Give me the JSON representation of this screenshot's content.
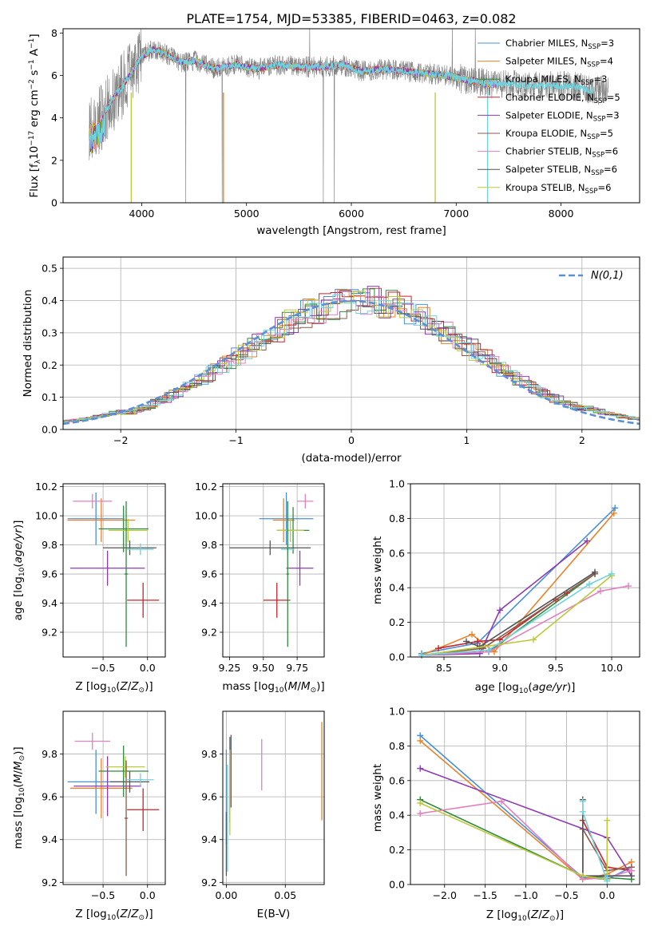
{
  "figure": {
    "title": "PLATE=1754, MJD=53385, FIBERID=0463, z=0.082"
  },
  "colors": {
    "chabrier_miles": "#4a90d9",
    "salpeter_miles": "#e8832a",
    "kroupa_miles": "#2e8b3e",
    "chabrier_elodie": "#c8242a",
    "salpeter_elodie": "#8e3bb3",
    "kroupa_elodie": "#8b5a4a",
    "chabrier_stelib": "#e37fbf",
    "salpeter_stelib": "#555555",
    "kroupa_stelib": "#bcc93a",
    "extra": "#6fd3de",
    "data": "#808080",
    "normal_curve": "#5b8fd8",
    "grid": "#b0b0b0"
  },
  "chart_data": [
    {
      "id": "spectrum",
      "type": "line",
      "xlabel": "wavelength [Angstrom, rest frame]",
      "ylabel": "Flux [f_λ 10^-17 erg cm^-2 s^-1 A^-1]",
      "xlim": [
        3250,
        8750
      ],
      "ylim": [
        0,
        8.2
      ],
      "xticks": [
        4000,
        5000,
        6000,
        7000,
        8000
      ],
      "yticks": [
        0,
        2,
        4,
        6,
        8
      ],
      "grid": false,
      "legend_position": "right",
      "legend": [
        {
          "label": "Chabrier MILES, N",
          "sub": "SSP",
          "tail": "=3",
          "color": "chabrier_miles"
        },
        {
          "label": "Salpeter MILES, N",
          "sub": "SSP",
          "tail": "=4",
          "color": "salpeter_miles"
        },
        {
          "label": "Kroupa MILES, N",
          "sub": "SSP",
          "tail": "=3",
          "color": "kroupa_miles"
        },
        {
          "label": "Chabrier ELODIE, N",
          "sub": "SSP",
          "tail": "=5",
          "color": "chabrier_elodie"
        },
        {
          "label": "Salpeter ELODIE, N",
          "sub": "SSP",
          "tail": "=3",
          "color": "salpeter_elodie"
        },
        {
          "label": "Kroupa ELODIE, N",
          "sub": "SSP",
          "tail": "=5",
          "color": "kroupa_elodie"
        },
        {
          "label": "Chabrier STELIB, N",
          "sub": "SSP",
          "tail": "=6",
          "color": "chabrier_stelib"
        },
        {
          "label": "Salpeter STELIB, N",
          "sub": "SSP",
          "tail": "=6",
          "color": "salpeter_stelib"
        },
        {
          "label": "Kroupa STELIB, N",
          "sub": "SSP",
          "tail": "=6",
          "color": "kroupa_stelib"
        }
      ],
      "continuum": {
        "x": [
          3500,
          3600,
          3700,
          3800,
          3900,
          4000,
          4100,
          4200,
          4300,
          4400,
          4500,
          4700,
          4900,
          5100,
          5300,
          5500,
          5700,
          5900,
          6100,
          6300,
          6500,
          6700,
          6900,
          7100,
          7300,
          7500,
          7700,
          7900,
          8100,
          8300,
          8450
        ],
        "y": [
          3.6,
          3.9,
          4.7,
          5.4,
          6.1,
          6.9,
          7.2,
          7.1,
          6.8,
          6.6,
          6.7,
          6.3,
          6.5,
          6.3,
          6.5,
          6.4,
          6.4,
          6.5,
          6.2,
          6.3,
          6.2,
          6.1,
          6.0,
          5.8,
          5.6,
          5.6,
          5.5,
          5.5,
          5.5,
          5.3,
          5.3
        ]
      },
      "model_range": [
        3500,
        7400
      ],
      "data_range": [
        3500,
        8450
      ]
    },
    {
      "id": "residuals",
      "type": "histogram",
      "xlabel": "(data-model)/error",
      "ylabel": "Normed distribution",
      "xlim": [
        -2.5,
        2.5
      ],
      "ylim": [
        0,
        0.535
      ],
      "xticks": [
        -2,
        -1,
        0,
        1,
        2
      ],
      "yticks": [
        0,
        0.1,
        0.2,
        0.3,
        0.4,
        0.5
      ],
      "grid": true,
      "legend_position": "top-right",
      "legend_label": "N(0,1)",
      "bin_width": 0.1
    },
    {
      "id": "age_vs_Z",
      "type": "scatter",
      "xlabel": "Z [log10(Z/Z_sun)]",
      "ylabel": "age [log10(age/yr)]",
      "xlim": [
        -0.95,
        0.2
      ],
      "ylim": [
        9.03,
        10.22
      ],
      "xticks": [
        -0.5,
        0.0
      ],
      "yticks": [
        9.2,
        9.4,
        9.6,
        9.8,
        10.0,
        10.2
      ],
      "grid": true,
      "points": [
        {
          "x": -0.58,
          "y": 9.98,
          "xerr": 0.32,
          "yerr": 0.18,
          "color": "chabrier_miles"
        },
        {
          "x": -0.52,
          "y": 9.97,
          "xerr": 0.38,
          "yerr": 0.15,
          "color": "salpeter_miles"
        },
        {
          "x": -0.27,
          "y": 9.91,
          "xerr": 0.28,
          "yerr": 0.16,
          "color": "kroupa_miles"
        },
        {
          "x": -0.05,
          "y": 9.42,
          "xerr": 0.18,
          "yerr": 0.12,
          "color": "chabrier_elodie"
        },
        {
          "x": -0.45,
          "y": 9.64,
          "xerr": 0.42,
          "yerr": 0.12,
          "color": "salpeter_elodie"
        },
        {
          "x": -0.2,
          "y": 9.78,
          "xerr": 0.3,
          "yerr": 0.05,
          "color": "salpeter_stelib"
        },
        {
          "x": -0.62,
          "y": 10.1,
          "xerr": 0.22,
          "yerr": 0.05,
          "color": "chabrier_stelib"
        },
        {
          "x": -0.22,
          "y": 9.9,
          "xerr": 0.22,
          "yerr": 0.08,
          "color": "kroupa_stelib"
        },
        {
          "x": -0.08,
          "y": 9.77,
          "xerr": 0.15,
          "yerr": 0.04,
          "color": "extra"
        },
        {
          "x": -0.24,
          "y": 9.6,
          "xerr": 0.02,
          "yerr": 0.5,
          "color": "kroupa_miles"
        }
      ]
    },
    {
      "id": "age_vs_mass",
      "type": "scatter",
      "xlabel": "mass [log10(M/M_sun)]",
      "ylabel": "",
      "xlim": [
        9.2,
        9.95
      ],
      "ylim": [
        9.03,
        10.22
      ],
      "xticks": [
        9.25,
        9.5,
        9.75
      ],
      "yticks": [
        9.2,
        9.4,
        9.6,
        9.8,
        10.0,
        10.2
      ],
      "grid": true,
      "points": [
        {
          "x": 9.67,
          "y": 9.98,
          "xerr": 0.2,
          "yerr": 0.18,
          "color": "chabrier_miles"
        },
        {
          "x": 9.65,
          "y": 9.97,
          "xerr": 0.08,
          "yerr": 0.15,
          "color": "salpeter_miles"
        },
        {
          "x": 9.72,
          "y": 9.9,
          "xerr": 0.12,
          "yerr": 0.16,
          "color": "kroupa_miles"
        },
        {
          "x": 9.6,
          "y": 9.42,
          "xerr": 0.1,
          "yerr": 0.12,
          "color": "chabrier_elodie"
        },
        {
          "x": 9.77,
          "y": 9.64,
          "xerr": 0.1,
          "yerr": 0.12,
          "color": "salpeter_elodie"
        },
        {
          "x": 9.55,
          "y": 9.78,
          "xerr": 0.3,
          "yerr": 0.05,
          "color": "salpeter_stelib"
        },
        {
          "x": 9.81,
          "y": 10.1,
          "xerr": 0.06,
          "yerr": 0.05,
          "color": "chabrier_stelib"
        },
        {
          "x": 9.7,
          "y": 9.9,
          "xerr": 0.1,
          "yerr": 0.08,
          "color": "kroupa_stelib"
        },
        {
          "x": 9.68,
          "y": 9.77,
          "xerr": 0.05,
          "yerr": 0.04,
          "color": "extra"
        },
        {
          "x": 9.68,
          "y": 9.6,
          "xerr": 0.01,
          "yerr": 0.5,
          "color": "kroupa_miles"
        }
      ]
    },
    {
      "id": "weight_vs_age",
      "type": "line",
      "xlabel": "age [log10(age/yr)]",
      "ylabel": "mass weight",
      "xlim": [
        8.2,
        10.25
      ],
      "ylim": [
        0,
        1.0
      ],
      "xticks": [
        8.5,
        9.0,
        9.5,
        10.0
      ],
      "yticks": [
        0,
        0.2,
        0.4,
        0.6,
        0.8,
        1.0
      ],
      "grid": true,
      "series": [
        {
          "color": "chabrier_miles",
          "x": [
            8.3,
            8.8,
            10.03
          ],
          "y": [
            0.02,
            0.08,
            0.86
          ]
        },
        {
          "color": "salpeter_miles",
          "x": [
            8.3,
            8.75,
            8.95,
            10.02
          ],
          "y": [
            0.01,
            0.13,
            0.03,
            0.83
          ]
        },
        {
          "color": "kroupa_miles",
          "x": [
            8.3,
            8.9,
            9.85
          ],
          "y": [
            0.01,
            0.03,
            0.48
          ]
        },
        {
          "color": "chabrier_elodie",
          "x": [
            8.45,
            8.8,
            9.0,
            9.5,
            9.6
          ],
          "y": [
            0.05,
            0.09,
            0.1,
            0.33,
            0.37
          ]
        },
        {
          "color": "salpeter_elodie",
          "x": [
            8.3,
            8.82,
            9.0,
            9.78
          ],
          "y": [
            0.01,
            0.02,
            0.27,
            0.67
          ]
        },
        {
          "color": "kroupa_elodie",
          "x": [
            8.3,
            8.85,
            9.85
          ],
          "y": [
            0.01,
            0.05,
            0.48
          ]
        },
        {
          "color": "chabrier_stelib",
          "x": [
            8.3,
            8.9,
            9.9,
            10.15
          ],
          "y": [
            0.01,
            0.03,
            0.38,
            0.41
          ]
        },
        {
          "color": "salpeter_stelib",
          "x": [
            8.7,
            8.82,
            9.85
          ],
          "y": [
            0.09,
            0.06,
            0.49
          ]
        },
        {
          "color": "kroupa_stelib",
          "x": [
            8.3,
            9.3,
            10.0
          ],
          "y": [
            0.01,
            0.1,
            0.47
          ]
        },
        {
          "color": "extra",
          "x": [
            8.3,
            8.9,
            9.8,
            10.0
          ],
          "y": [
            0.01,
            0.04,
            0.42,
            0.48
          ]
        }
      ]
    },
    {
      "id": "mass_vs_Z",
      "type": "scatter",
      "xlabel": "Z [log10(Z/Z_sun)]",
      "ylabel": "mass [log10(M/M_sun)]",
      "xlim": [
        -0.95,
        0.2
      ],
      "ylim": [
        9.19,
        10.0
      ],
      "xticks": [
        -0.5,
        0.0
      ],
      "yticks": [
        9.2,
        9.4,
        9.6,
        9.8
      ],
      "grid": true,
      "points": [
        {
          "x": -0.58,
          "y": 9.67,
          "xerr": 0.32,
          "yerr": 0.15,
          "color": "chabrier_miles"
        },
        {
          "x": -0.52,
          "y": 9.64,
          "xerr": 0.35,
          "yerr": 0.14,
          "color": "salpeter_miles"
        },
        {
          "x": -0.27,
          "y": 9.72,
          "xerr": 0.28,
          "yerr": 0.12,
          "color": "kroupa_miles"
        },
        {
          "x": -0.05,
          "y": 9.54,
          "xerr": 0.18,
          "yerr": 0.1,
          "color": "chabrier_elodie"
        },
        {
          "x": -0.45,
          "y": 9.65,
          "xerr": 0.38,
          "yerr": 0.14,
          "color": "salpeter_elodie"
        },
        {
          "x": -0.2,
          "y": 9.67,
          "xerr": 0.22,
          "yerr": 0.05,
          "color": "salpeter_stelib"
        },
        {
          "x": -0.62,
          "y": 9.86,
          "xerr": 0.2,
          "yerr": 0.04,
          "color": "chabrier_stelib"
        },
        {
          "x": -0.25,
          "y": 9.74,
          "xerr": 0.22,
          "yerr": 0.05,
          "color": "kroupa_stelib"
        },
        {
          "x": -0.08,
          "y": 9.68,
          "xerr": 0.15,
          "yerr": 0.03,
          "color": "extra"
        },
        {
          "x": -0.24,
          "y": 9.5,
          "xerr": 0.02,
          "yerr": 0.27,
          "color": "kroupa_elodie"
        }
      ]
    },
    {
      "id": "mass_vs_ebv",
      "type": "scatter",
      "xlabel": "E(B-V)",
      "ylabel": "",
      "xlim": [
        -0.003,
        0.083
      ],
      "ylim": [
        9.19,
        10.0
      ],
      "xticks": [
        0.0,
        0.05
      ],
      "yticks": [
        9.2,
        9.4,
        9.6,
        9.8
      ],
      "grid": true,
      "points": [
        {
          "x": 0.0,
          "y": 9.6,
          "xerr": 0.0,
          "yerr": 0.22,
          "color": "chabrier_miles"
        },
        {
          "x": 0.081,
          "y": 9.72,
          "xerr": 0.0,
          "yerr": 0.23,
          "color": "salpeter_miles"
        },
        {
          "x": 0.003,
          "y": 9.68,
          "xerr": 0.0,
          "yerr": 0.2,
          "color": "kroupa_miles"
        },
        {
          "x": 0.004,
          "y": 9.72,
          "xerr": 0.0,
          "yerr": 0.17,
          "color": "salpeter_elodie"
        },
        {
          "x": 0.03,
          "y": 9.75,
          "xerr": 0.0,
          "yerr": 0.12,
          "color": "chabrier_stelib"
        },
        {
          "x": 0.0,
          "y": 9.38,
          "xerr": 0.0,
          "yerr": 0.15,
          "color": "salpeter_stelib"
        },
        {
          "x": 0.003,
          "y": 9.62,
          "xerr": 0.0,
          "yerr": 0.2,
          "color": "kroupa_stelib"
        },
        {
          "x": 0.001,
          "y": 9.5,
          "xerr": 0.0,
          "yerr": 0.25,
          "color": "extra"
        }
      ]
    },
    {
      "id": "weight_vs_Z",
      "type": "line",
      "xlabel": "Z [log10(Z/Z_sun)]",
      "ylabel": "mass weight",
      "xlim": [
        -2.42,
        0.4
      ],
      "ylim": [
        0,
        1.0
      ],
      "xticks": [
        -2.0,
        -1.5,
        -1.0,
        -0.5,
        0.0
      ],
      "yticks": [
        0,
        0.2,
        0.4,
        0.6,
        0.8,
        1.0
      ],
      "grid": true,
      "series": [
        {
          "color": "chabrier_miles",
          "x": [
            -2.3,
            -0.3,
            0.0,
            0.3
          ],
          "y": [
            0.86,
            0.04,
            0.03,
            0.1
          ]
        },
        {
          "color": "salpeter_miles",
          "x": [
            -2.3,
            -0.3,
            0.0,
            0.3
          ],
          "y": [
            0.83,
            0.03,
            0.06,
            0.13
          ]
        },
        {
          "color": "kroupa_miles",
          "x": [
            -2.3,
            -0.3,
            0.0,
            0.3
          ],
          "y": [
            0.49,
            0.05,
            0.04,
            0.03
          ]
        },
        {
          "color": "chabrier_elodie",
          "x": [
            -0.3,
            -0.3,
            0.0,
            0.3
          ],
          "y": [
            0.05,
            0.37,
            0.1,
            0.08
          ]
        },
        {
          "color": "salpeter_elodie",
          "x": [
            -2.3,
            0.0,
            0.3
          ],
          "y": [
            0.67,
            0.27,
            0.05
          ]
        },
        {
          "color": "kroupa_elodie",
          "x": [
            -0.3,
            -0.3,
            0.0,
            0.3
          ],
          "y": [
            0.05,
            0.32,
            0.08,
            0.1
          ]
        },
        {
          "color": "chabrier_stelib",
          "x": [
            -2.3,
            -1.3,
            -0.3,
            0.0,
            0.3
          ],
          "y": [
            0.41,
            0.48,
            0.03,
            0.04,
            0.08
          ]
        },
        {
          "color": "salpeter_stelib",
          "x": [
            -0.3,
            -0.3,
            0.0,
            0.3
          ],
          "y": [
            0.49,
            0.05,
            0.05,
            0.05
          ]
        },
        {
          "color": "kroupa_stelib",
          "x": [
            -2.3,
            -0.3,
            0.0,
            0.0
          ],
          "y": [
            0.47,
            0.05,
            0.03,
            0.37
          ]
        },
        {
          "color": "extra",
          "x": [
            -0.3,
            -0.3,
            0.0,
            0.0
          ],
          "y": [
            0.48,
            0.42,
            0.02,
            0.04
          ]
        }
      ]
    }
  ]
}
